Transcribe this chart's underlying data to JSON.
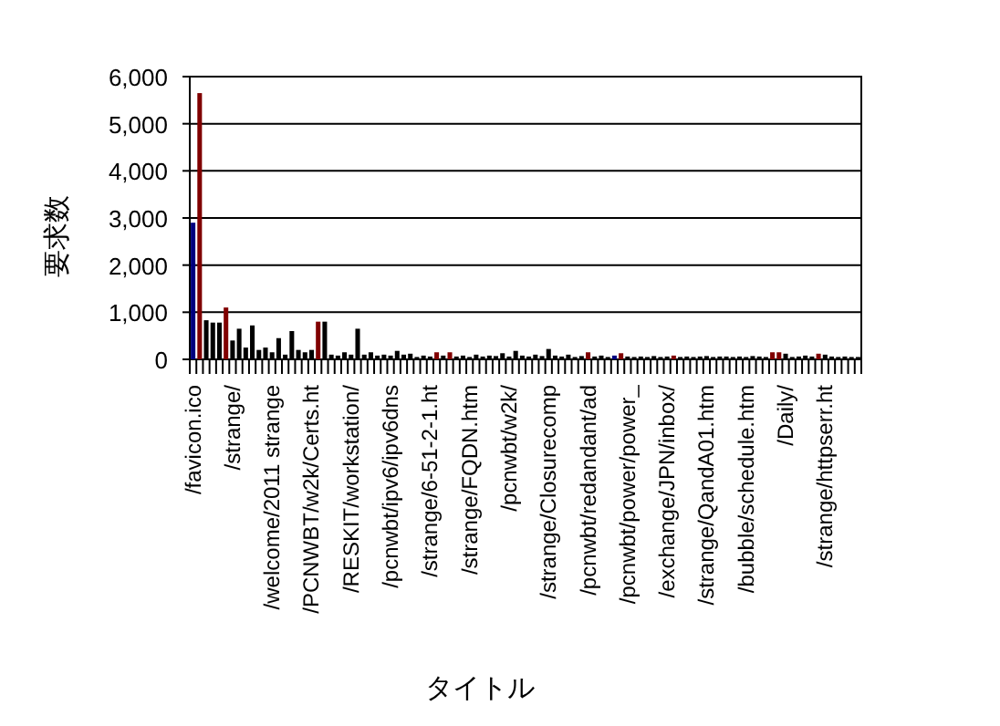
{
  "chart_data": {
    "type": "bar",
    "xlabel": "タイトル",
    "ylabel": "要求数",
    "categories": [
      "/favicon.ico",
      null,
      null,
      null,
      null,
      null,
      "/strange/",
      null,
      null,
      null,
      null,
      null,
      "/welcome/2011 strange",
      null,
      null,
      null,
      null,
      null,
      "/PCNWBT/w2k/Certs.ht",
      null,
      null,
      null,
      null,
      null,
      "/RESKIT/workstation/",
      null,
      null,
      null,
      null,
      null,
      "/pcnwbt/ipv6/ipv6dns",
      null,
      null,
      null,
      null,
      null,
      "/strange/6-51-2-1.ht",
      null,
      null,
      null,
      null,
      null,
      "/strange/FQDN.htm",
      null,
      null,
      null,
      null,
      null,
      "/pcnwbt/w2k/",
      null,
      null,
      null,
      null,
      null,
      "/strange/Closurecomp",
      null,
      null,
      null,
      null,
      null,
      "/pcnwbt/redandant/ad",
      null,
      null,
      null,
      null,
      null,
      "/pcnwbt/power/power_",
      null,
      null,
      null,
      null,
      null,
      "/exchange/JPN/inbox/",
      null,
      null,
      null,
      null,
      null,
      "/strange/QandA01.htm",
      null,
      null,
      null,
      null,
      null,
      "/bubble/schedule.htm",
      null,
      null,
      null,
      null,
      null,
      "/Daily/",
      null,
      null,
      null,
      null,
      null,
      "/strange/httpserr.ht",
      null,
      null,
      null,
      null,
      null
    ],
    "values": [
      2900,
      5650,
      830,
      780,
      780,
      1100,
      400,
      650,
      250,
      720,
      200,
      250,
      150,
      450,
      100,
      600,
      200,
      150,
      200,
      800,
      800,
      100,
      80,
      150,
      100,
      650,
      100,
      150,
      80,
      100,
      80,
      180,
      100,
      120,
      50,
      80,
      60,
      150,
      80,
      150,
      60,
      80,
      50,
      100,
      60,
      80,
      70,
      130,
      60,
      180,
      80,
      60,
      100,
      70,
      220,
      80,
      60,
      100,
      50,
      70,
      150,
      60,
      80,
      50,
      80,
      130,
      60,
      50,
      60,
      50,
      70,
      50,
      60,
      80,
      50,
      60,
      50,
      60,
      70,
      50,
      60,
      60,
      50,
      60,
      50,
      70,
      60,
      50,
      150,
      150,
      120,
      50,
      60,
      80,
      60,
      120,
      100,
      60,
      50,
      60,
      50,
      50
    ],
    "colors": [
      "#000080",
      "#800000",
      "#000000",
      "#000000",
      "#000000",
      "#800000",
      "#000000",
      "#000000",
      "#000000",
      "#000000",
      "#000000",
      "#000000",
      "#000000",
      "#000000",
      "#000000",
      "#000000",
      "#000000",
      "#000000",
      "#000000",
      "#800000",
      "#000000",
      "#000000",
      "#000000",
      "#000000",
      "#000000",
      "#000000",
      "#000000",
      "#000000",
      "#000000",
      "#000000",
      "#000000",
      "#000000",
      "#000000",
      "#000000",
      "#000000",
      "#000000",
      "#000000",
      "#800000",
      "#000000",
      "#800000",
      "#000000",
      "#000000",
      "#000000",
      "#000000",
      "#000000",
      "#000000",
      "#000000",
      "#000000",
      "#000000",
      "#000000",
      "#000000",
      "#000000",
      "#000000",
      "#000000",
      "#000000",
      "#000000",
      "#000000",
      "#000000",
      "#000000",
      "#000000",
      "#800000",
      "#000000",
      "#000000",
      "#000000",
      "#000080",
      "#800000",
      "#000000",
      "#000000",
      "#000000",
      "#000000",
      "#000000",
      "#000000",
      "#000000",
      "#800000",
      "#000000",
      "#000000",
      "#000000",
      "#000000",
      "#000000",
      "#000000",
      "#000000",
      "#000000",
      "#000000",
      "#000000",
      "#000000",
      "#000000",
      "#000000",
      "#000000",
      "#800000",
      "#800000",
      "#000000",
      "#000000",
      "#000000",
      "#000000",
      "#000000",
      "#800000",
      "#000000",
      "#000000",
      "#000000",
      "#000000",
      "#000000",
      "#000000"
    ],
    "ylim": [
      0,
      6000
    ],
    "yticks": [
      0,
      {
        "value": 1000,
        "label": "1,000"
      },
      {
        "value": 2000,
        "label": "2,000"
      },
      {
        "value": 3000,
        "label": "3,000"
      },
      {
        "value": 4000,
        "label": "4,000"
      },
      {
        "value": 5000,
        "label": "5,000"
      },
      {
        "value": 6000,
        "label": "6,000"
      }
    ],
    "grid": "y"
  }
}
